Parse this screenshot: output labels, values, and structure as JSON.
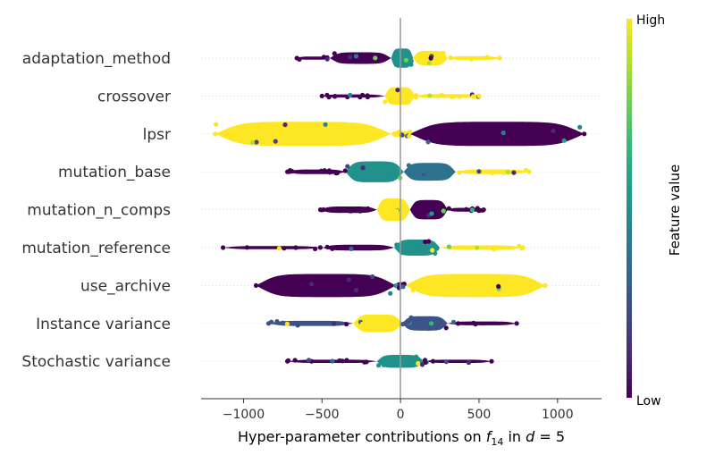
{
  "chart_data": {
    "type": "scatter",
    "subtype": "beeswarm",
    "xlabel": {
      "prefix": "Hyper-parameter contributions on ",
      "sym": "f",
      "sub": "14",
      "mid": " in ",
      "d": "d",
      "eq": " = 5"
    },
    "xlim": [
      -1270,
      1280
    ],
    "xticks": [
      -1000,
      -500,
      0,
      500,
      1000
    ],
    "xtick_labels": [
      "−1000",
      "−500",
      "0",
      "500",
      "1000"
    ],
    "features": [
      {
        "name": "adaptation_method",
        "min": -660,
        "max": 630,
        "segments": [
          {
            "from": -660,
            "to": -450,
            "amp": 0.1,
            "color": "#440154"
          },
          {
            "from": -450,
            "to": -60,
            "amp": 0.36,
            "color": "#440154"
          },
          {
            "from": -60,
            "to": 80,
            "amp": 0.6,
            "color": "#21918c"
          },
          {
            "from": 80,
            "to": 300,
            "amp": 0.45,
            "color": "#fde725"
          },
          {
            "from": 300,
            "to": 630,
            "amp": 0.12,
            "color": "#fde725"
          }
        ]
      },
      {
        "name": "crossover",
        "min": -500,
        "max": 500,
        "segments": [
          {
            "from": -500,
            "to": -100,
            "amp": 0.1,
            "color": "#440154"
          },
          {
            "from": -100,
            "to": 90,
            "amp": 0.55,
            "color": "#fde725"
          },
          {
            "from": 90,
            "to": 500,
            "amp": 0.12,
            "color": "#fde725"
          }
        ]
      },
      {
        "name": "lpsr",
        "min": -1180,
        "max": 1170,
        "segments": [
          {
            "from": -1180,
            "to": -60,
            "amp": 0.75,
            "color": "#fde725"
          },
          {
            "from": -60,
            "to": 60,
            "amp": 0.18,
            "color": "#fde725"
          },
          {
            "from": 60,
            "to": 1170,
            "amp": 0.75,
            "color": "#440154"
          }
        ]
      },
      {
        "name": "mutation_base",
        "min": -720,
        "max": 820,
        "segments": [
          {
            "from": -720,
            "to": -350,
            "amp": 0.14,
            "color": "#440154"
          },
          {
            "from": -350,
            "to": 20,
            "amp": 0.65,
            "color": "#21918c"
          },
          {
            "from": 20,
            "to": 350,
            "amp": 0.55,
            "color": "#2c728e"
          },
          {
            "from": 350,
            "to": 820,
            "amp": 0.14,
            "color": "#fde725"
          }
        ]
      },
      {
        "name": "mutation_n_comps",
        "min": -510,
        "max": 530,
        "segments": [
          {
            "from": -510,
            "to": -150,
            "amp": 0.2,
            "color": "#440154"
          },
          {
            "from": -150,
            "to": 60,
            "amp": 0.7,
            "color": "#fde725"
          },
          {
            "from": 60,
            "to": 300,
            "amp": 0.6,
            "color": "#440154"
          },
          {
            "from": 300,
            "to": 530,
            "amp": 0.12,
            "color": "#440154"
          }
        ]
      },
      {
        "name": "mutation_reference",
        "min": -1130,
        "max": 780,
        "segments": [
          {
            "from": -1130,
            "to": -500,
            "amp": 0.1,
            "color": "#440154"
          },
          {
            "from": -500,
            "to": -40,
            "amp": 0.18,
            "color": "#440154"
          },
          {
            "from": -40,
            "to": 250,
            "amp": 0.5,
            "color": "#21918c"
          },
          {
            "from": 250,
            "to": 780,
            "amp": 0.14,
            "color": "#fde725"
          }
        ]
      },
      {
        "name": "use_archive",
        "min": -920,
        "max": 920,
        "segments": [
          {
            "from": -920,
            "to": -30,
            "amp": 0.72,
            "color": "#440154"
          },
          {
            "from": -30,
            "to": 30,
            "amp": 0.2,
            "color": "#440154"
          },
          {
            "from": 30,
            "to": 920,
            "amp": 0.72,
            "color": "#fde725"
          }
        ]
      },
      {
        "name": "Instance variance",
        "min": -840,
        "max": 740,
        "segments": [
          {
            "from": -840,
            "to": -300,
            "amp": 0.16,
            "color": "#3b528b"
          },
          {
            "from": -300,
            "to": 10,
            "amp": 0.55,
            "color": "#fde725"
          },
          {
            "from": 10,
            "to": 300,
            "amp": 0.45,
            "color": "#3b528b"
          },
          {
            "from": 300,
            "to": 740,
            "amp": 0.12,
            "color": "#440154"
          }
        ]
      },
      {
        "name": "Stochastic variance",
        "min": -720,
        "max": 580,
        "segments": [
          {
            "from": -720,
            "to": -150,
            "amp": 0.1,
            "color": "#440154"
          },
          {
            "from": -150,
            "to": 150,
            "amp": 0.4,
            "color": "#21918c"
          },
          {
            "from": 150,
            "to": 580,
            "amp": 0.1,
            "color": "#440154"
          }
        ]
      }
    ],
    "colorbar": {
      "label": "Feature value",
      "high_label": "High",
      "low_label": "Low",
      "colormap": [
        "#fde725",
        "#b5de2b",
        "#6ece58",
        "#35b779",
        "#1f9e89",
        "#26828e",
        "#31688e",
        "#3e4989",
        "#482878",
        "#440154"
      ]
    },
    "zero_line": true,
    "row_gridlines": "dotted"
  }
}
